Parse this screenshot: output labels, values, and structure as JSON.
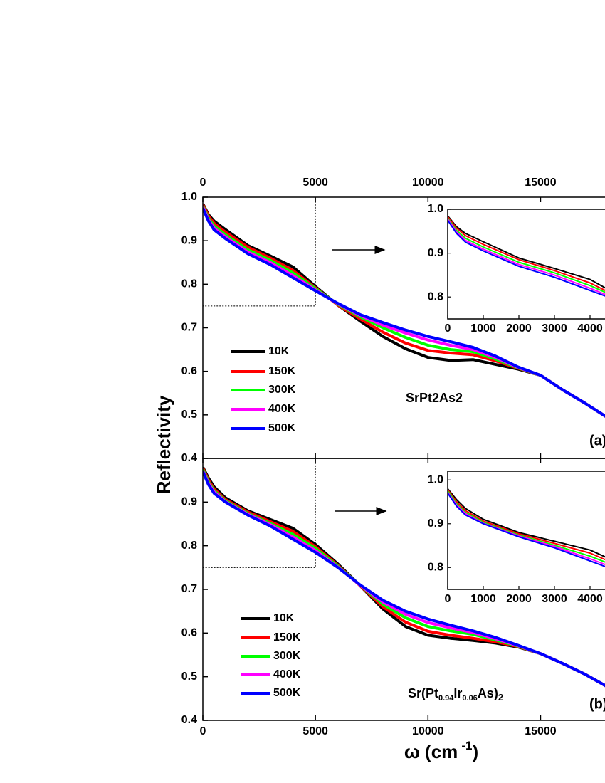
{
  "chart_data": [
    {
      "type": "line",
      "ylabel": "Reflectivity",
      "sample_label": "SrPt2As2",
      "panel_label": "(a)",
      "x": [
        0,
        250,
        500,
        1000,
        2000,
        3000,
        4000,
        5000,
        6000,
        7000,
        8000,
        9000,
        10000,
        11000,
        12000,
        13000,
        14000,
        15000,
        16000,
        17000,
        18000
      ],
      "xlim": [
        0,
        20000
      ],
      "xticks": [
        0,
        5000,
        10000,
        15000
      ],
      "ylim": [
        0.4,
        1.0
      ],
      "yticks": [
        0.4,
        0.5,
        0.6,
        0.7,
        0.8,
        0.9,
        {
          "value": 1.0,
          "label": "1.0"
        }
      ],
      "series": [
        {
          "name": "10K",
          "color": "#000000",
          "values": [
            0.985,
            0.96,
            0.945,
            0.926,
            0.889,
            0.865,
            0.84,
            0.795,
            0.752,
            0.715,
            0.68,
            0.652,
            0.632,
            0.625,
            0.627,
            0.616,
            0.605,
            0.591,
            0.557,
            0.526,
            0.493
          ]
        },
        {
          "name": "150K",
          "color": "#ff0000",
          "values": [
            0.983,
            0.957,
            0.94,
            0.92,
            0.885,
            0.86,
            0.832,
            0.792,
            0.752,
            0.72,
            0.69,
            0.665,
            0.648,
            0.642,
            0.638,
            0.624,
            0.607,
            0.591,
            0.557,
            0.526,
            0.493
          ]
        },
        {
          "name": "300K",
          "color": "#00ff00",
          "values": [
            0.98,
            0.952,
            0.934,
            0.914,
            0.879,
            0.855,
            0.826,
            0.79,
            0.754,
            0.725,
            0.7,
            0.678,
            0.66,
            0.65,
            0.645,
            0.628,
            0.608,
            0.591,
            0.557,
            0.526,
            0.493
          ]
        },
        {
          "name": "400K",
          "color": "#ff00ff",
          "values": [
            0.978,
            0.948,
            0.929,
            0.909,
            0.874,
            0.85,
            0.82,
            0.787,
            0.755,
            0.728,
            0.706,
            0.688,
            0.672,
            0.66,
            0.65,
            0.632,
            0.609,
            0.591,
            0.557,
            0.526,
            0.493
          ]
        },
        {
          "name": "500K",
          "color": "#0000ff",
          "values": [
            0.975,
            0.945,
            0.925,
            0.905,
            0.87,
            0.845,
            0.815,
            0.785,
            0.756,
            0.73,
            0.712,
            0.695,
            0.68,
            0.668,
            0.655,
            0.635,
            0.61,
            0.591,
            0.557,
            0.526,
            0.493
          ]
        }
      ],
      "inset": {
        "xlim": [
          0,
          5000
        ],
        "xticks": [
          0,
          1000,
          2000,
          3000,
          4000
        ],
        "ylim": [
          0.75,
          1.0
        ],
        "yticks": [
          0.8,
          0.9,
          {
            "value": 1.0,
            "label": "1.0"
          }
        ]
      }
    },
    {
      "type": "line",
      "xlabel": [
        "ω (cm",
        "-1",
        ")"
      ],
      "sample_label": [
        "Sr(Pt",
        "0.94",
        "Ir",
        "0.06",
        "As)",
        "2"
      ],
      "panel_label": "(b)",
      "x": [
        0,
        250,
        500,
        1000,
        2000,
        3000,
        4000,
        5000,
        6000,
        7000,
        8000,
        9000,
        10000,
        11000,
        12000,
        13000,
        14000,
        15000,
        16000,
        17000,
        18000
      ],
      "xlim": [
        0,
        20000
      ],
      "xticks": [
        0,
        5000,
        10000,
        15000
      ],
      "ylim": [
        0.4,
        1.0
      ],
      "yticks": [
        0.4,
        0.5,
        0.6,
        0.7,
        0.8,
        0.9
      ],
      "series": [
        {
          "name": "10K",
          "color": "#000000",
          "values": [
            0.98,
            0.955,
            0.935,
            0.91,
            0.88,
            0.86,
            0.84,
            0.803,
            0.758,
            0.708,
            0.655,
            0.615,
            0.595,
            0.588,
            0.583,
            0.577,
            0.568,
            0.553,
            0.53,
            0.505,
            0.476
          ]
        },
        {
          "name": "150K",
          "color": "#ff0000",
          "values": [
            0.978,
            0.95,
            0.93,
            0.906,
            0.877,
            0.855,
            0.833,
            0.798,
            0.755,
            0.708,
            0.66,
            0.625,
            0.604,
            0.595,
            0.588,
            0.58,
            0.569,
            0.553,
            0.53,
            0.505,
            0.476
          ]
        },
        {
          "name": "300K",
          "color": "#00ff00",
          "values": [
            0.975,
            0.946,
            0.926,
            0.903,
            0.874,
            0.851,
            0.826,
            0.794,
            0.753,
            0.709,
            0.666,
            0.635,
            0.615,
            0.605,
            0.597,
            0.584,
            0.57,
            0.553,
            0.53,
            0.505,
            0.476
          ]
        },
        {
          "name": "400K",
          "color": "#ff00ff",
          "values": [
            0.972,
            0.943,
            0.923,
            0.901,
            0.872,
            0.848,
            0.82,
            0.789,
            0.751,
            0.709,
            0.671,
            0.643,
            0.624,
            0.612,
            0.601,
            0.587,
            0.571,
            0.553,
            0.53,
            0.505,
            0.476
          ]
        },
        {
          "name": "500K",
          "color": "#0000ff",
          "values": [
            0.97,
            0.94,
            0.92,
            0.9,
            0.87,
            0.845,
            0.815,
            0.785,
            0.75,
            0.71,
            0.675,
            0.65,
            0.632,
            0.618,
            0.605,
            0.59,
            0.572,
            0.553,
            0.53,
            0.505,
            0.476
          ]
        }
      ],
      "inset": {
        "xlim": [
          0,
          5000
        ],
        "xticks": [
          0,
          1000,
          2000,
          3000,
          4000
        ],
        "ylim": [
          0.75,
          1.02
        ],
        "yticks": [
          0.8,
          0.9,
          {
            "value": 1.0,
            "label": "1.0"
          }
        ]
      }
    }
  ]
}
